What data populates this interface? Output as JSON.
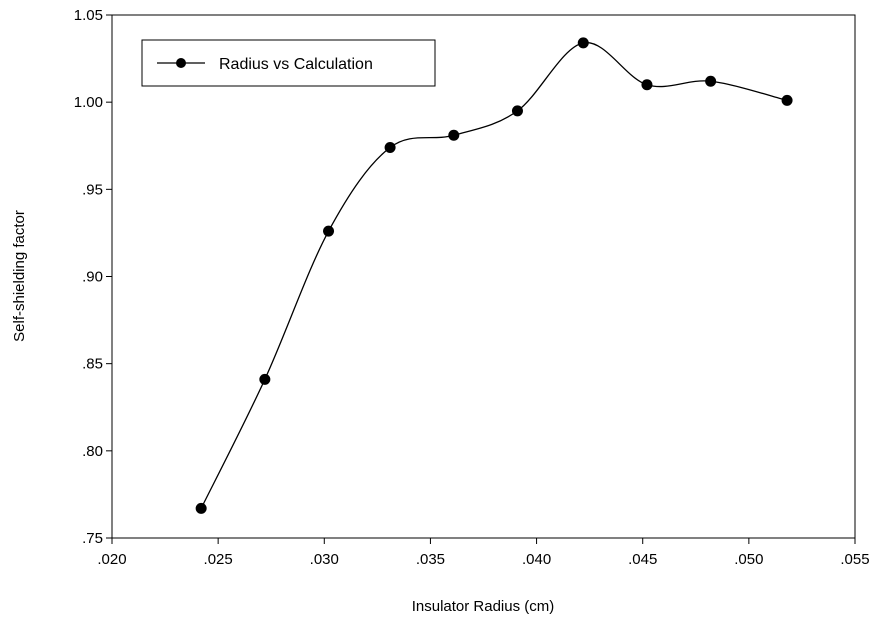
{
  "chart_data": {
    "type": "line",
    "xlabel": "Insulator Radius  (cm)",
    "ylabel": "Self-shielding factor",
    "xlim": [
      0.02,
      0.055
    ],
    "ylim": [
      0.75,
      1.05
    ],
    "x_ticks": [
      ".020",
      ".025",
      ".030",
      ".035",
      ".040",
      ".045",
      ".050",
      ".055"
    ],
    "y_ticks": [
      ".75",
      ".80",
      ".85",
      ".90",
      ".95",
      "1.00",
      "1.05"
    ],
    "legend_position": "top-left",
    "grid": false,
    "series": [
      {
        "name": "Radius vs Calculation",
        "color": "#000000",
        "marker": "circle",
        "smooth": true,
        "x": [
          0.0242,
          0.0272,
          0.0302,
          0.0331,
          0.0361,
          0.0391,
          0.0422,
          0.0452,
          0.0482,
          0.0518
        ],
        "y": [
          0.767,
          0.841,
          0.926,
          0.974,
          0.981,
          0.995,
          1.034,
          1.01,
          1.012,
          1.001
        ]
      }
    ]
  }
}
